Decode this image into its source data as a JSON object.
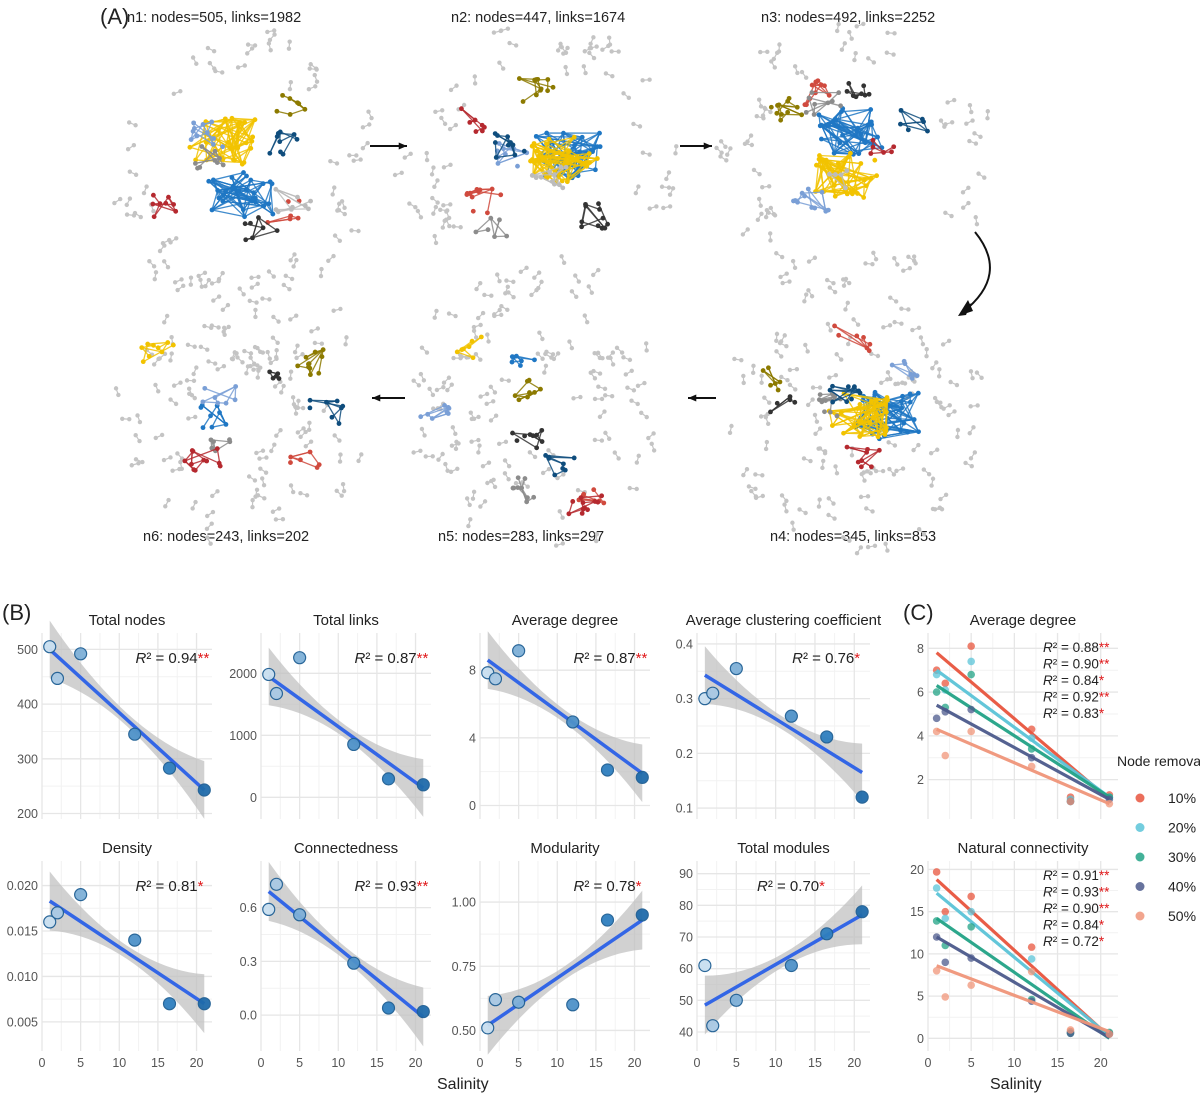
{
  "figure_labels": {
    "A": "(A)",
    "B": "(B)",
    "C": "(C)"
  },
  "x_axis_label": "Salinity",
  "legend": {
    "title": "Node removal",
    "items": [
      {
        "label": "10%",
        "color": "#e8553e"
      },
      {
        "label": "20%",
        "color": "#5bc4d8"
      },
      {
        "label": "30%",
        "color": "#22a386"
      },
      {
        "label": "40%",
        "color": "#4c5a8c"
      },
      {
        "label": "50%",
        "color": "#f0957a"
      }
    ]
  },
  "networks": [
    {
      "id": "n1",
      "label": "n1: nodes=505, links=1982"
    },
    {
      "id": "n2",
      "label": "n2: nodes=447, links=1674"
    },
    {
      "id": "n3",
      "label": "n3: nodes=492, links=2252"
    },
    {
      "id": "n4",
      "label": "n4: nodes=345, links=853"
    },
    {
      "id": "n5",
      "label": "n5: nodes=283, links=297"
    },
    {
      "id": "n6",
      "label": "n6: nodes=243, links=202"
    }
  ],
  "colors": {
    "point": "#2f7fbf",
    "point_stroke": "#1f5f94",
    "regression_line": "#3366e6",
    "ci_band": "#bdbdbd",
    "grid_major": "#e6e6e6",
    "grid_minor": "#f2f2f2",
    "significance": "#e0191b",
    "module_palette": [
      "#1f77c4",
      "#f2c300",
      "#d04a3e",
      "#8c8c8c",
      "#7a9fd6",
      "#0f4d7d",
      "#8c7a00",
      "#b5292f",
      "#333333",
      "#bcbcbc"
    ]
  },
  "chart_data": [
    {
      "id": "total-nodes",
      "type": "scatter",
      "title": "Total nodes",
      "x": [
        1,
        2,
        5,
        12,
        16.5,
        21
      ],
      "y": [
        505,
        447,
        492,
        345,
        283,
        243
      ],
      "xlim": [
        0,
        22
      ],
      "ylim": [
        190,
        530
      ],
      "yticks": [
        200,
        300,
        400,
        500
      ],
      "xticks": [
        0,
        5,
        10,
        15,
        20
      ],
      "fit": [
        1,
        500,
        21,
        243
      ],
      "r2": "0.94",
      "stars": "**"
    },
    {
      "id": "total-links",
      "type": "scatter",
      "title": "Total links",
      "x": [
        1,
        2,
        5,
        12,
        16.5,
        21
      ],
      "y": [
        1982,
        1674,
        2252,
        853,
        297,
        202
      ],
      "xlim": [
        0,
        22
      ],
      "ylim": [
        -350,
        2650
      ],
      "yticks": [
        0,
        1000,
        2000
      ],
      "xticks": [
        0,
        5,
        10,
        15,
        20
      ],
      "fit": [
        1,
        1950,
        21,
        150
      ],
      "r2": "0.87",
      "stars": "**"
    },
    {
      "id": "average-degree",
      "type": "scatter",
      "title": "Average degree",
      "x": [
        1,
        2,
        5,
        12,
        16.5,
        21
      ],
      "y": [
        7.85,
        7.49,
        9.15,
        4.94,
        2.1,
        1.66
      ],
      "xlim": [
        0,
        22
      ],
      "ylim": [
        -0.8,
        10.2
      ],
      "yticks": [
        0,
        4,
        8
      ],
      "xticks": [
        0,
        5,
        10,
        15,
        20
      ],
      "fit": [
        1,
        8.6,
        21,
        1.9
      ],
      "r2": "0.87",
      "stars": "**"
    },
    {
      "id": "clustering",
      "type": "scatter",
      "title": "Average clustering coefficient",
      "x": [
        1,
        2,
        5,
        12,
        16.5,
        21
      ],
      "y": [
        0.3,
        0.31,
        0.355,
        0.268,
        0.23,
        0.12
      ],
      "xlim": [
        0,
        22
      ],
      "ylim": [
        0.08,
        0.42
      ],
      "yticks": [
        0.1,
        0.2,
        0.3,
        0.4
      ],
      "xticks": [
        0,
        5,
        10,
        15,
        20
      ],
      "fit": [
        1,
        0.343,
        21,
        0.165
      ],
      "r2": "0.76",
      "stars": "*"
    },
    {
      "id": "density",
      "type": "scatter",
      "title": "Density",
      "x": [
        1,
        2,
        5,
        12,
        16.5,
        21
      ],
      "y": [
        0.016,
        0.017,
        0.019,
        0.014,
        0.007,
        0.007
      ],
      "xlim": [
        0,
        22
      ],
      "ylim": [
        0.0018,
        0.0227
      ],
      "yticks": [
        0.005,
        0.01,
        0.015,
        0.02
      ],
      "ytick_labels": [
        "0.005",
        "0.010",
        "0.015",
        "0.020"
      ],
      "xticks": [
        0,
        5,
        10,
        15,
        20
      ],
      "fit": [
        1,
        0.0183,
        21,
        0.007
      ],
      "r2": "0.81",
      "stars": "*"
    },
    {
      "id": "connectedness",
      "type": "scatter",
      "title": "Connectedness",
      "x": [
        1,
        2,
        5,
        12,
        16.5,
        21
      ],
      "y": [
        0.59,
        0.73,
        0.56,
        0.29,
        0.04,
        0.02
      ],
      "xlim": [
        0,
        22
      ],
      "ylim": [
        -0.2,
        0.86
      ],
      "yticks": [
        0,
        0.3,
        0.6
      ],
      "ytick_labels": [
        "0.0",
        "0.3",
        "0.6"
      ],
      "xticks": [
        0,
        5,
        10,
        15,
        20
      ],
      "fit": [
        1,
        0.69,
        21,
        -0.01
      ],
      "r2": "0.93",
      "stars": "**"
    },
    {
      "id": "modularity",
      "type": "scatter",
      "title": "Modularity",
      "x": [
        1,
        2,
        5,
        12,
        16.5,
        21
      ],
      "y": [
        0.51,
        0.62,
        0.61,
        0.6,
        0.93,
        0.95
      ],
      "xlim": [
        0,
        22
      ],
      "ylim": [
        0.42,
        1.16
      ],
      "yticks": [
        0.5,
        0.75,
        1.0
      ],
      "ytick_labels": [
        "0.50",
        "0.75",
        "1.00"
      ],
      "xticks": [
        0,
        5,
        10,
        15,
        20
      ],
      "fit": [
        1,
        0.52,
        21,
        0.93
      ],
      "r2": "0.78",
      "stars": "*"
    },
    {
      "id": "total-modules",
      "type": "scatter",
      "title": "Total modules",
      "x": [
        1,
        2,
        5,
        12,
        16.5,
        21
      ],
      "y": [
        61,
        42,
        50,
        61,
        71,
        78
      ],
      "xlim": [
        0,
        22
      ],
      "ylim": [
        34,
        94
      ],
      "yticks": [
        40,
        50,
        60,
        70,
        80,
        90
      ],
      "xticks": [
        0,
        5,
        10,
        15,
        20
      ],
      "fit": [
        1,
        48.5,
        21,
        77
      ],
      "r2": "0.70",
      "stars": "*"
    }
  ],
  "node_removal_charts": [
    {
      "id": "removal-average-degree",
      "type": "scatter",
      "title": "Average degree",
      "xlim": [
        0,
        22
      ],
      "ylim": [
        0.2,
        8.7
      ],
      "yticks": [
        2,
        4,
        6,
        8
      ],
      "xticks": [
        0,
        5,
        10,
        15,
        20
      ],
      "x": [
        1,
        2,
        5,
        12,
        16.5,
        21
      ],
      "series": [
        {
          "name": "10%",
          "y": [
            7.0,
            6.4,
            8.1,
            4.3,
            1.2,
            1.3
          ],
          "fit": [
            1,
            7.8,
            21,
            1.1
          ],
          "r2": "0.88",
          "stars": "**"
        },
        {
          "name": "20%",
          "y": [
            6.8,
            6.1,
            7.4,
            3.9,
            1.1,
            1.2
          ],
          "fit": [
            1,
            7.0,
            21,
            1.2
          ],
          "r2": "0.90",
          "stars": "**"
        },
        {
          "name": "30%",
          "y": [
            6.0,
            5.3,
            6.8,
            3.4,
            1.0,
            1.2
          ],
          "fit": [
            1,
            6.3,
            21,
            1.2
          ],
          "r2": "0.84",
          "stars": "*"
        },
        {
          "name": "40%",
          "y": [
            4.8,
            5.1,
            5.2,
            3.0,
            1.0,
            1.1
          ],
          "fit": [
            1,
            5.4,
            21,
            1.1
          ],
          "r2": "0.92",
          "stars": "**"
        },
        {
          "name": "50%",
          "y": [
            4.2,
            3.1,
            4.2,
            2.6,
            1.0,
            0.9
          ],
          "fit": [
            1,
            4.3,
            21,
            0.9
          ],
          "r2": "0.83",
          "stars": "*"
        }
      ]
    },
    {
      "id": "removal-natural-connectivity",
      "type": "scatter",
      "title": "Natural connectivity",
      "xlim": [
        0,
        22
      ],
      "ylim": [
        -1.5,
        21
      ],
      "yticks": [
        0,
        5,
        10,
        15,
        20
      ],
      "xticks": [
        0,
        5,
        10,
        15,
        20
      ],
      "x": [
        1,
        2,
        5,
        12,
        16.5,
        21
      ],
      "series": [
        {
          "name": "10%",
          "y": [
            19.7,
            15.0,
            16.8,
            10.8,
            0.8,
            0.6
          ],
          "fit": [
            1,
            18.8,
            21,
            0.2
          ],
          "r2": "0.91",
          "stars": "**"
        },
        {
          "name": "20%",
          "y": [
            17.8,
            14.2,
            15.0,
            9.4,
            0.7,
            0.6
          ],
          "fit": [
            1,
            17.2,
            21,
            0.3
          ],
          "r2": "0.93",
          "stars": "**"
        },
        {
          "name": "30%",
          "y": [
            13.9,
            11.0,
            13.2,
            4.6,
            0.6,
            0.7
          ],
          "fit": [
            1,
            14.2,
            21,
            0.0
          ],
          "r2": "0.90",
          "stars": "**"
        },
        {
          "name": "40%",
          "y": [
            12.0,
            9.0,
            9.5,
            4.4,
            0.6,
            0.5
          ],
          "fit": [
            1,
            12.0,
            21,
            0.1
          ],
          "r2": "0.84",
          "stars": "*"
        },
        {
          "name": "50%",
          "y": [
            8.0,
            4.9,
            6.3,
            7.9,
            1.0,
            0.5
          ],
          "fit": [
            1,
            8.6,
            21,
            0.8
          ],
          "r2": "0.72",
          "stars": "*"
        }
      ]
    }
  ]
}
